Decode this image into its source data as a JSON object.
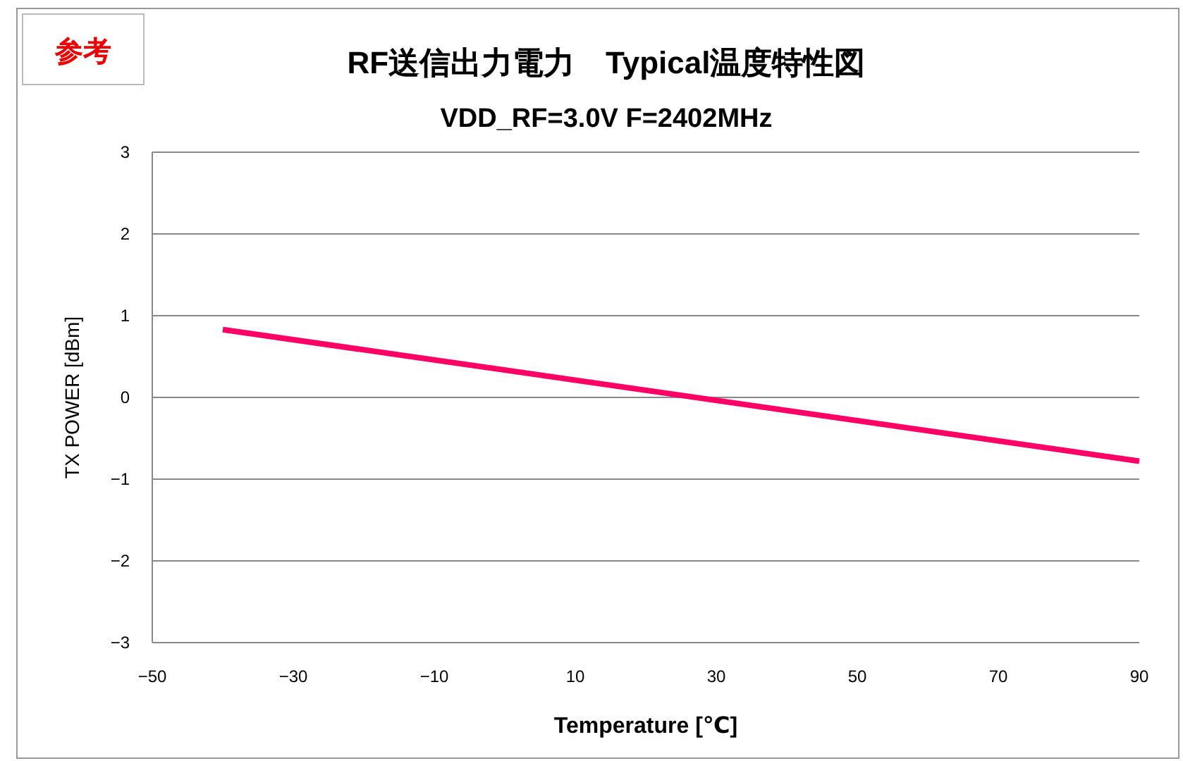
{
  "chart_data": {
    "type": "line",
    "title": "RF送信出力電力　Typical温度特性図",
    "subtitle": "VDD_RF=3.0V F=2402MHz",
    "xlabel": "Temperature [℃]",
    "ylabel": "TX POWER [dBm]",
    "annotations": [
      "参考"
    ],
    "x": [
      -40,
      90
    ],
    "series": [
      {
        "color": "#ff0066",
        "values": [
          0.83,
          -0.78
        ]
      }
    ],
    "xlim": [
      -50,
      90
    ],
    "xticks": [
      -50,
      -30,
      -10,
      10,
      30,
      50,
      70,
      90
    ],
    "ylim": [
      -3,
      3
    ],
    "yticks": [
      -3,
      -2,
      -1,
      0,
      1,
      2,
      3
    ],
    "grid": "y",
    "marker": "none",
    "line_style": "solid"
  }
}
